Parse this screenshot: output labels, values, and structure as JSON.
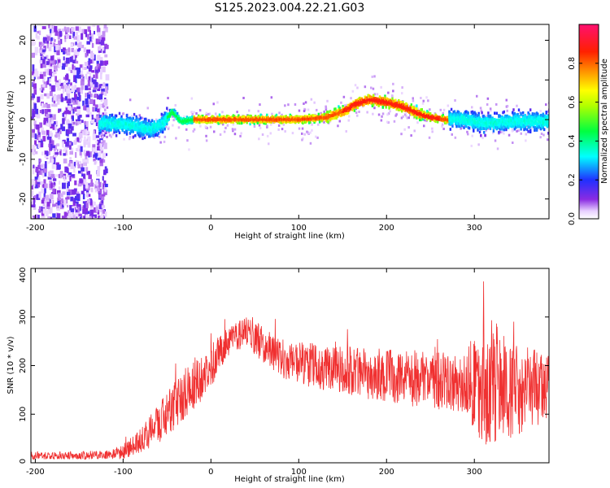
{
  "title": "S125.2023.004.22.21.G03",
  "chart_data": [
    {
      "type": "heatmap",
      "xlabel": "Height of straight line (km)",
      "ylabel": "Frequency (Hz)",
      "xlim": [
        -205,
        385
      ],
      "ylim": [
        -25,
        24
      ],
      "x_ticks": [
        -200,
        -100,
        0,
        100,
        200,
        300
      ],
      "y_ticks": [
        -20,
        -10,
        0,
        10,
        20
      ],
      "colorbar": {
        "label": "Normalized spectral amplitude",
        "range": [
          0,
          1
        ],
        "ticks": [
          0.0,
          0.2,
          0.4,
          0.6,
          0.8
        ],
        "colormap": "rainbow",
        "position": "right"
      },
      "frequency_ridge": [
        {
          "x": -120,
          "y": -1.0
        },
        {
          "x": -90,
          "y": -1.5
        },
        {
          "x": -70,
          "y": -2.5
        },
        {
          "x": -55,
          "y": -1.0
        },
        {
          "x": -45,
          "y": 2.0
        },
        {
          "x": -35,
          "y": -0.5
        },
        {
          "x": -20,
          "y": 0.0
        },
        {
          "x": 0,
          "y": 0.0
        },
        {
          "x": 50,
          "y": 0.0
        },
        {
          "x": 100,
          "y": 0.0
        },
        {
          "x": 130,
          "y": 0.5
        },
        {
          "x": 150,
          "y": 2.0
        },
        {
          "x": 165,
          "y": 4.0
        },
        {
          "x": 180,
          "y": 5.0
        },
        {
          "x": 195,
          "y": 4.5
        },
        {
          "x": 215,
          "y": 3.5
        },
        {
          "x": 235,
          "y": 1.5
        },
        {
          "x": 250,
          "y": 0.5
        },
        {
          "x": 265,
          "y": 0.0
        },
        {
          "x": 285,
          "y": 0.0
        },
        {
          "x": 310,
          "y": -1.0
        },
        {
          "x": 340,
          "y": -0.5
        },
        {
          "x": 385,
          "y": -0.5
        }
      ]
    },
    {
      "type": "line",
      "xlabel": "Height of straight line (km)",
      "ylabel": "SNR (10 * v/v)",
      "xlim": [
        -205,
        385
      ],
      "ylim": [
        0,
        400
      ],
      "x_ticks": [
        -200,
        -100,
        0,
        100,
        200,
        300
      ],
      "y_ticks": [
        0,
        100,
        200,
        300,
        400
      ],
      "series_color": "#f03030",
      "envelope": [
        {
          "x": -205,
          "mean": 15,
          "spread": 8
        },
        {
          "x": -150,
          "mean": 15,
          "spread": 8
        },
        {
          "x": -110,
          "mean": 18,
          "spread": 10
        },
        {
          "x": -100,
          "mean": 22,
          "spread": 15
        },
        {
          "x": -80,
          "mean": 45,
          "spread": 25
        },
        {
          "x": -60,
          "mean": 80,
          "spread": 40
        },
        {
          "x": -40,
          "mean": 120,
          "spread": 50
        },
        {
          "x": -20,
          "mean": 160,
          "spread": 55
        },
        {
          "x": 0,
          "mean": 200,
          "spread": 45
        },
        {
          "x": 20,
          "mean": 250,
          "spread": 30
        },
        {
          "x": 40,
          "mean": 270,
          "spread": 30
        },
        {
          "x": 60,
          "mean": 245,
          "spread": 40
        },
        {
          "x": 80,
          "mean": 215,
          "spread": 40
        },
        {
          "x": 100,
          "mean": 205,
          "spread": 45
        },
        {
          "x": 150,
          "mean": 190,
          "spread": 50
        },
        {
          "x": 200,
          "mean": 180,
          "spread": 55
        },
        {
          "x": 250,
          "mean": 170,
          "spread": 60
        },
        {
          "x": 290,
          "mean": 165,
          "spread": 60
        },
        {
          "x": 300,
          "mean": 160,
          "spread": 110
        },
        {
          "x": 320,
          "mean": 160,
          "spread": 140
        },
        {
          "x": 340,
          "mean": 150,
          "spread": 100
        },
        {
          "x": 385,
          "mean": 155,
          "spread": 70
        }
      ]
    }
  ]
}
